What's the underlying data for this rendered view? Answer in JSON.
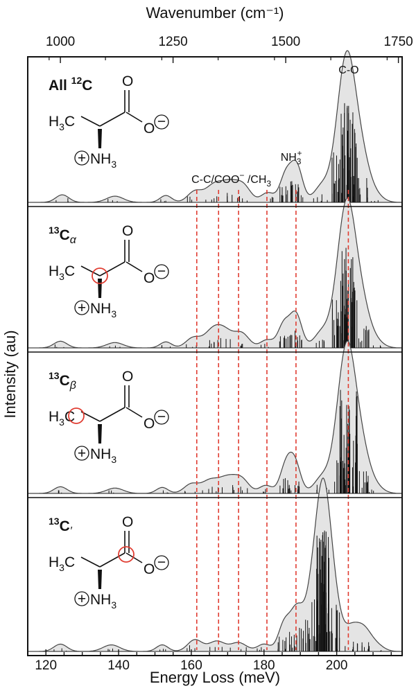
{
  "chart_data": {
    "type": "area",
    "xlabel": "Energy Loss (meV)",
    "ylabel": "Intensity (au)",
    "top_axis_label": "Wavenumber (cm⁻¹)",
    "xlim": [
      115,
      218
    ],
    "x_ticks": [
      120,
      140,
      160,
      180,
      200
    ],
    "x_tick_labels": [
      "120",
      "140",
      "160",
      "180",
      "200"
    ],
    "top_ticks_cm": [
      1000,
      1250,
      1500,
      1750
    ],
    "top_tick_labels": [
      "1000",
      "1250",
      "1500",
      "1750"
    ],
    "meV_per_cm": 0.123984,
    "ylim": [
      0,
      1
    ],
    "dashed_lines_meV": [
      161.5,
      167.5,
      173.0,
      180.8,
      188.8,
      203.2
    ],
    "dashed_color": "#e03c31",
    "fill_color": "#e4e4e4",
    "line_color": "#444444",
    "stick_color": "#111111",
    "panels": [
      {
        "name": "All 12C",
        "label_main": "All ",
        "label_sup": "12",
        "label_elem": "C",
        "label_suffix": "",
        "circle_at": "none",
        "peaks": [
          [
            124.5,
            0.055,
            1.8
          ],
          [
            139,
            0.045,
            2.3
          ],
          [
            153,
            0.05,
            1.6
          ],
          [
            161,
            0.08,
            2
          ],
          [
            166,
            0.11,
            2.2
          ],
          [
            170.5,
            0.14,
            2.5
          ],
          [
            174.5,
            0.1,
            2
          ],
          [
            181,
            0.07,
            1.8
          ],
          [
            186,
            0.2,
            1.6
          ],
          [
            189,
            0.26,
            1.6
          ],
          [
            196,
            0.12,
            2.2
          ],
          [
            201,
            0.4,
            2.2
          ],
          [
            203.3,
            0.78,
            2.2
          ],
          [
            206.8,
            0.3,
            2.2
          ],
          [
            210.5,
            0.05,
            2.2
          ]
        ]
      },
      {
        "name": "13Calpha",
        "label_main": "",
        "label_sup": "13",
        "label_elem": "C",
        "label_suffix": "α",
        "circle_at": "calpha",
        "peaks": [
          [
            124,
            0.05,
            1.8
          ],
          [
            139,
            0.04,
            2.3
          ],
          [
            153,
            0.045,
            1.6
          ],
          [
            160.5,
            0.075,
            2
          ],
          [
            165.5,
            0.1,
            2.2
          ],
          [
            169,
            0.13,
            2.5
          ],
          [
            174,
            0.1,
            2
          ],
          [
            180.8,
            0.06,
            1.8
          ],
          [
            185.5,
            0.18,
            1.6
          ],
          [
            188.8,
            0.25,
            1.6
          ],
          [
            196,
            0.12,
            2.2
          ],
          [
            201,
            0.4,
            2.2
          ],
          [
            203.3,
            0.8,
            2.2
          ],
          [
            206.8,
            0.3,
            2.2
          ],
          [
            210.5,
            0.05,
            2.2
          ]
        ]
      },
      {
        "name": "13Cbeta",
        "label_main": "",
        "label_sup": "13",
        "label_elem": "C",
        "label_suffix": "β",
        "circle_at": "cbeta",
        "peaks": [
          [
            124,
            0.05,
            1.8
          ],
          [
            139,
            0.04,
            2.3
          ],
          [
            152,
            0.045,
            1.6
          ],
          [
            160,
            0.07,
            2
          ],
          [
            165,
            0.09,
            2.2
          ],
          [
            170,
            0.12,
            2.5
          ],
          [
            174,
            0.09,
            2
          ],
          [
            180.5,
            0.06,
            1.8
          ],
          [
            186,
            0.2,
            1.6
          ],
          [
            188.5,
            0.22,
            1.6
          ],
          [
            196,
            0.12,
            2.2
          ],
          [
            201,
            0.4,
            2.2
          ],
          [
            203.3,
            0.82,
            2.2
          ],
          [
            206.8,
            0.3,
            2.2
          ],
          [
            210.5,
            0.05,
            2.2
          ]
        ]
      },
      {
        "name": "13C'",
        "label_main": "",
        "label_sup": "13",
        "label_elem": "C",
        "label_suffix": "′",
        "circle_at": "ccarbonyl",
        "peaks": [
          [
            124,
            0.05,
            1.8
          ],
          [
            138,
            0.045,
            2.3
          ],
          [
            152,
            0.045,
            1.6
          ],
          [
            161,
            0.08,
            2
          ],
          [
            167,
            0.07,
            2.2
          ],
          [
            173,
            0.06,
            2.2
          ],
          [
            180,
            0.05,
            1.8
          ],
          [
            185.5,
            0.18,
            1.6
          ],
          [
            189,
            0.28,
            1.8
          ],
          [
            193.5,
            0.4,
            2
          ],
          [
            196.3,
            0.9,
            1.9
          ],
          [
            199,
            0.35,
            2
          ],
          [
            204,
            0.15,
            2
          ],
          [
            207.5,
            0.14,
            2
          ],
          [
            211,
            0.04,
            2
          ]
        ]
      }
    ],
    "annotations": {
      "co": "C-O",
      "nh3": "NH",
      "nh3_sub": "3",
      "nh3_sup": "+",
      "ccoo": "C-C/COO",
      "ccoo_sup": "−",
      "ccoo_tail": " /CH",
      "ccoo_sub": "3"
    }
  },
  "molecule": {
    "h3c": "H",
    "h3c_sub": "3",
    "h3c_c": "C",
    "o_top": "O",
    "o_right": "O",
    "minus": "−",
    "plus": "+",
    "nh": "NH",
    "nh_sub": "3"
  },
  "circle_color": "#e03c31"
}
